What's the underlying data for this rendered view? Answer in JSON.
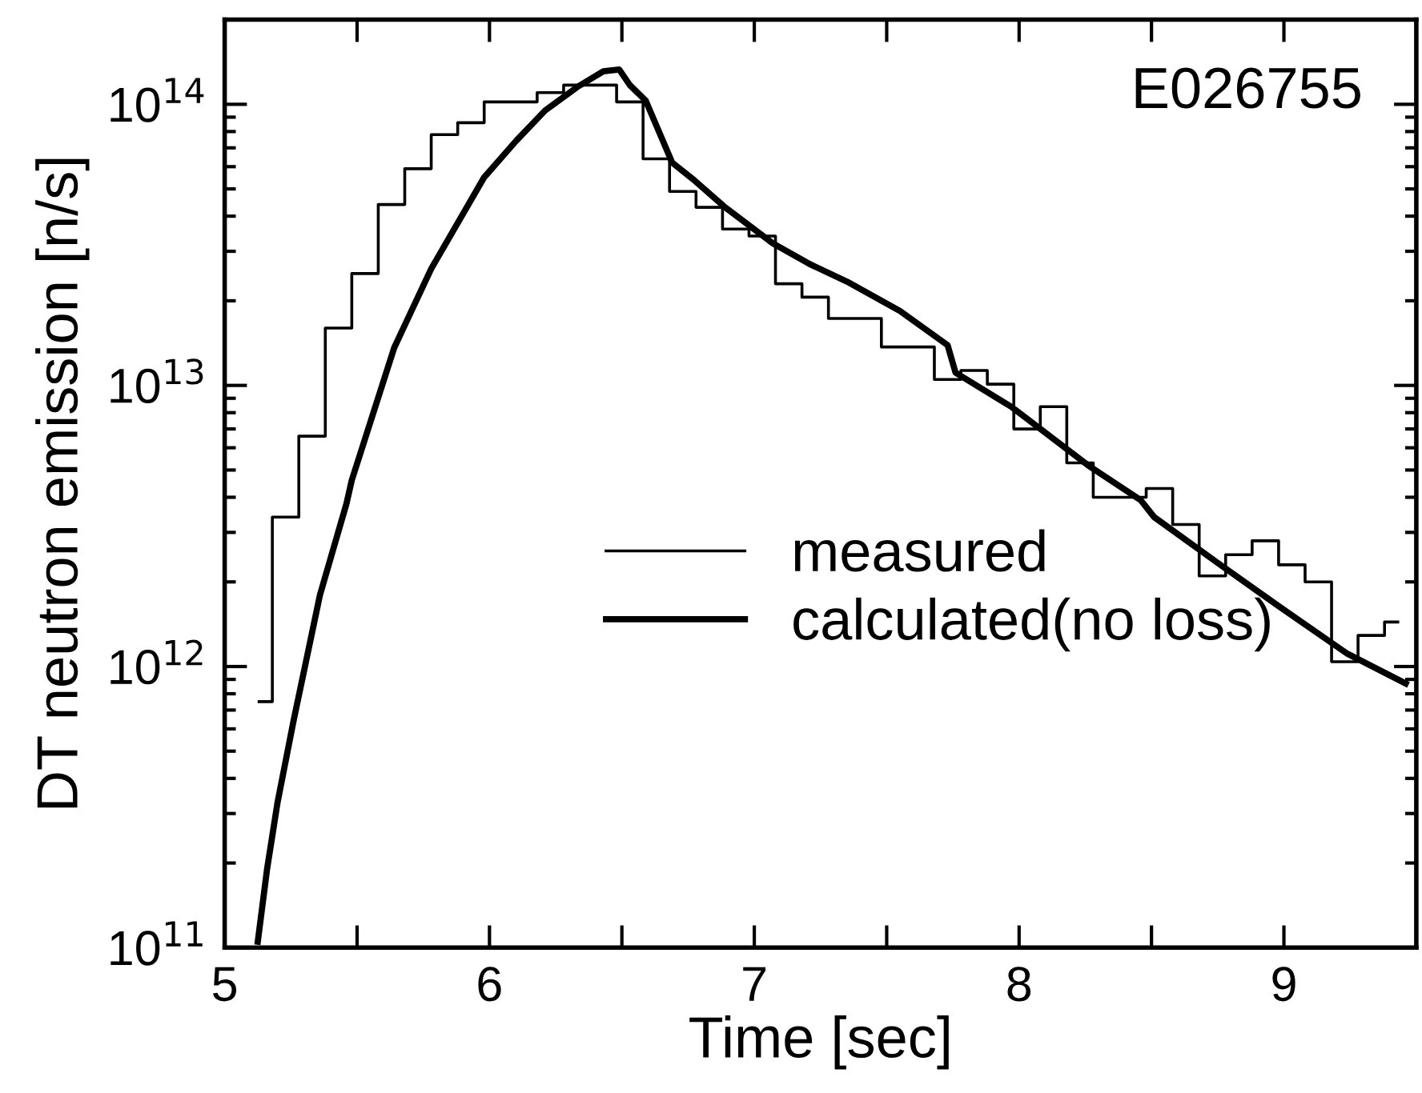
{
  "chart_data": {
    "type": "step",
    "xlabel": "Time [sec]",
    "ylabel": "DT neutron emission [n/s]",
    "annotations": [
      "E026755"
    ],
    "log": "y",
    "legend": "center",
    "grid": false,
    "xlim": [
      5,
      9.5
    ],
    "ylim": [
      100000000000.0,
      200000000000000.0
    ],
    "xticks": [
      5,
      {
        "value": 5.5,
        "label": null
      },
      6,
      {
        "value": 6.5,
        "label": null
      },
      7,
      {
        "value": 7.5,
        "label": null
      },
      8,
      {
        "value": 8.5,
        "label": null
      },
      9
    ],
    "yticks": [
      {
        "value": 100000000000.0,
        "label": "10$^{11}$"
      },
      {
        "value": 1000000000000.0,
        "label": "10$^{12}$"
      },
      {
        "value": 10000000000000.0,
        "label": "10$^{13}$"
      },
      {
        "value": 100000000000000.0,
        "label": "10$^{14}$"
      }
    ],
    "series": [
      {
        "name": "measured",
        "color": "#000000",
        "x": [
          5.13,
          5.23,
          5.33,
          5.43,
          5.53,
          5.63,
          5.73,
          5.83,
          5.93,
          6.03,
          6.13,
          6.23,
          6.33,
          6.43,
          6.53,
          6.63,
          6.73,
          6.83,
          6.93,
          7.03,
          7.13,
          7.23,
          7.33,
          7.43,
          7.53,
          7.63,
          7.73,
          7.83,
          7.93,
          8.03,
          8.13,
          8.23,
          8.33,
          8.43,
          8.53,
          8.63,
          8.73,
          8.83,
          8.93,
          9.03,
          9.13,
          9.23,
          9.33,
          9.43
        ],
        "values": [
          750000000000.0,
          3400000000000.0,
          6600000000000.0,
          16000000000000.0,
          25000000000000.0,
          44000000000000.0,
          59000000000000.0,
          78000000000000.0,
          86000000000000.0,
          102000000000000.0,
          102000000000000.0,
          110000000000000.0,
          117000000000000.0,
          117000000000000.0,
          102000000000000.0,
          64000000000000.0,
          49000000000000.0,
          43000000000000.0,
          36000000000000.0,
          34000000000000.0,
          23000000000000.0,
          20600000000000.0,
          17300000000000.0,
          17300000000000.0,
          13700000000000.0,
          13700000000000.0,
          10500000000000.0,
          11300000000000.0,
          10100000000000.0,
          7000000000000.0,
          8400000000000.0,
          5300000000000.0,
          4000000000000.0,
          4000000000000.0,
          4300000000000.0,
          3200000000000.0,
          2100000000000.0,
          2500000000000.0,
          2800000000000.0,
          2300000000000.0,
          2000000000000.0,
          1040000000000.0,
          1290000000000.0,
          1440000000000.0
        ]
      },
      {
        "name": "calculated(no loss)",
        "type": "line",
        "color": "#000000",
        "x": [
          5.125,
          5.16,
          5.2,
          5.26,
          5.36,
          5.46,
          5.48,
          5.64,
          5.78,
          5.98,
          6.1,
          6.21,
          6.33,
          6.43,
          6.49,
          6.53,
          6.59,
          6.69,
          6.77,
          6.89,
          7.07,
          7.21,
          7.35,
          7.55,
          7.73,
          7.76,
          7.97,
          8.26,
          8.46,
          8.51,
          8.76,
          8.98,
          9.24,
          9.46
        ],
        "values": [
          105000000000.0,
          190000000000.0,
          330000000000.0,
          640000000000.0,
          1800000000000.0,
          3800000000000.0,
          4600000000000.0,
          13600000000000.0,
          26000000000000.0,
          55000000000000.0,
          74000000000000.0,
          95000000000000.0,
          115000000000000.0,
          131000000000000.0,
          133000000000000.0,
          117000000000000.0,
          103000000000000.0,
          62000000000000.0,
          54000000000000.0,
          43000000000000.0,
          32000000000000.0,
          27000000000000.0,
          23400000000000.0,
          18400000000000.0,
          13900000000000.0,
          11100000000000.0,
          8400000000000.0,
          5200000000000.0,
          3900000000000.0,
          3400000000000.0,
          2300000000000.0,
          1640000000000.0,
          1110000000000.0,
          870000000000.0
        ]
      }
    ]
  }
}
